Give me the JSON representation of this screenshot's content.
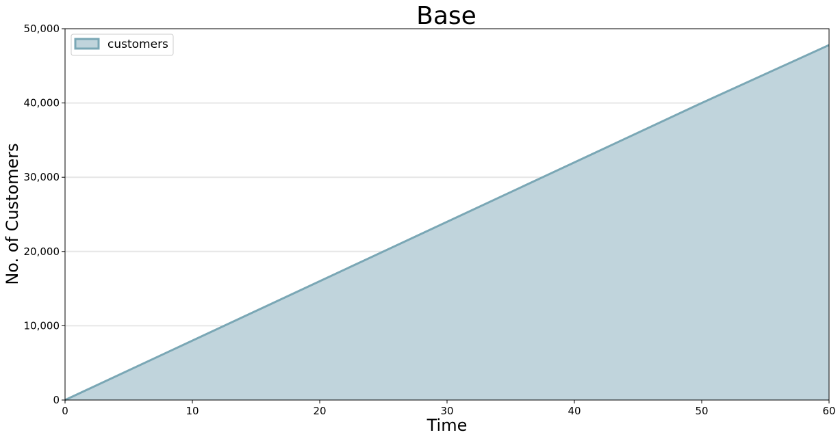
{
  "chart_data": {
    "type": "area",
    "title": "Base",
    "xlabel": "Time",
    "ylabel": "No. of Customers",
    "xlim": [
      0,
      60
    ],
    "ylim": [
      0,
      50000
    ],
    "x_ticks": [
      0,
      10,
      20,
      30,
      40,
      50,
      60
    ],
    "x_tick_labels": [
      "0",
      "10",
      "20",
      "30",
      "40",
      "50",
      "60"
    ],
    "y_ticks": [
      0,
      10000,
      20000,
      30000,
      40000,
      50000
    ],
    "y_tick_labels": [
      "0",
      "10,000",
      "20,000",
      "30,000",
      "40,000",
      "50,000"
    ],
    "grid": "horizontal",
    "legend_placement": "top-left",
    "series": [
      {
        "name": "customers",
        "x": [
          0,
          10,
          20,
          30,
          40,
          50,
          60
        ],
        "y": [
          0,
          8000,
          16000,
          24000,
          32000,
          40000,
          47800
        ],
        "fill_color": "#c0d4dc",
        "line_color": "#7aa7b5"
      }
    ]
  }
}
